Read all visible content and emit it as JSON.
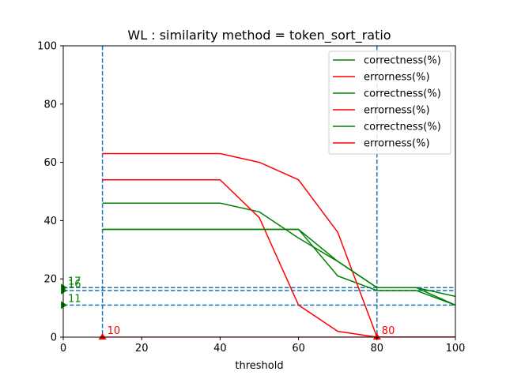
{
  "chart_data": {
    "type": "line",
    "title": "WL : similarity method = token_sort_ratio",
    "xlabel": "threshold",
    "ylabel": "",
    "xlim": [
      0,
      100
    ],
    "ylim": [
      0,
      100
    ],
    "x_ticks": [
      "0",
      "20",
      "40",
      "60",
      "80",
      "100"
    ],
    "y_ticks": [
      "0",
      "20",
      "40",
      "60",
      "80",
      "100"
    ],
    "grid": false,
    "legend_position": "top-right",
    "colors": {
      "correctness": "#008000",
      "errorness": "#ff0000",
      "guides": "#1f77b4"
    },
    "series": [
      {
        "name": "correctness(%)",
        "color": "#008000",
        "x": [
          10,
          20,
          30,
          40,
          50,
          60,
          70,
          80,
          90,
          100
        ],
        "y": [
          46,
          46,
          46,
          46,
          43,
          34,
          26,
          17,
          17,
          11
        ]
      },
      {
        "name": "errorness(%)",
        "color": "#ff0000",
        "x": [
          10,
          20,
          30,
          40,
          50,
          60,
          70,
          80,
          90,
          100
        ],
        "y": [
          54,
          54,
          54,
          54,
          41,
          11,
          2,
          0,
          0,
          0
        ]
      },
      {
        "name": "correctness(%)",
        "color": "#008000",
        "x": [
          10,
          20,
          30,
          40,
          50,
          60,
          70,
          80,
          90,
          100
        ],
        "y": [
          37,
          37,
          37,
          37,
          37,
          37,
          21,
          16,
          16,
          11
        ]
      },
      {
        "name": "errorness(%)",
        "color": "#ff0000",
        "x": [
          10,
          20,
          30,
          40,
          50,
          60,
          70,
          80,
          90,
          100
        ],
        "y": [
          63,
          63,
          63,
          63,
          60,
          54,
          36,
          0,
          0,
          0
        ]
      },
      {
        "name": "correctness(%)",
        "color": "#008000",
        "x": [
          10,
          20,
          30,
          40,
          50,
          60,
          70,
          80,
          90,
          100
        ],
        "y": [
          37,
          37,
          37,
          37,
          37,
          37,
          26,
          17,
          17,
          14
        ]
      },
      {
        "name": "errorness(%)",
        "color": "#ff0000",
        "x": [
          10,
          20,
          30,
          40,
          50,
          60,
          70,
          80,
          90,
          100
        ],
        "y": [
          0,
          0,
          0,
          0,
          0,
          0,
          0,
          0,
          0,
          0
        ]
      }
    ],
    "reference_lines": {
      "vertical_x": [
        10,
        80
      ],
      "horizontal_y": [
        17,
        16,
        11
      ]
    },
    "annotations": [
      {
        "text": "17",
        "x": 0,
        "y": 17,
        "color": "#008000",
        "marker": "triangle-right"
      },
      {
        "text": "16",
        "x": 0,
        "y": 16,
        "color": "#008000",
        "marker": "triangle-right"
      },
      {
        "text": "11",
        "x": 0,
        "y": 11,
        "color": "#008000",
        "marker": "triangle-right"
      },
      {
        "text": "10",
        "x": 10,
        "y": 0,
        "color": "#ff0000",
        "marker": "triangle-up"
      },
      {
        "text": "80",
        "x": 80,
        "y": 0,
        "color": "#ff0000",
        "marker": "triangle-up"
      }
    ]
  }
}
